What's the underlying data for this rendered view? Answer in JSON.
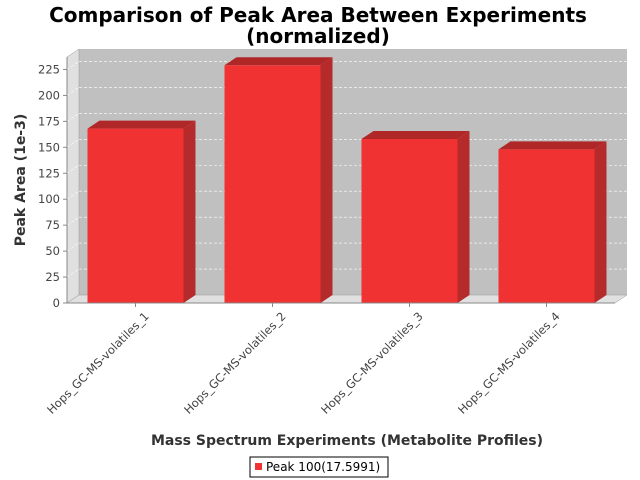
{
  "chart_data": {
    "type": "bar",
    "title_line1": "Comparison of Peak Area Between Experiments",
    "title_line2": "(normalized)",
    "xlabel": "Mass Spectrum Experiments (Metabolite Profiles)",
    "ylabel": "Peak Area (1e-3)",
    "categories": [
      "Hops_GC-MS-volatiles_1",
      "Hops_GC-MS-volatiles_2",
      "Hops_GC-MS-volatiles_3",
      "Hops_GC-MS-volatiles_4"
    ],
    "series": [
      {
        "name": "Peak 100(17.5991)",
        "values": [
          168,
          229,
          158,
          148
        ]
      }
    ],
    "ylim": [
      0,
      237
    ],
    "yticks": [
      0,
      25,
      50,
      75,
      100,
      125,
      150,
      175,
      200,
      225
    ],
    "grid": true,
    "legend": "bottom-center",
    "colors": {
      "bar": "#f03232",
      "bar_top": "#b02727",
      "bar_side": "#b52a2a",
      "plot_bg": "#c0c0c0",
      "wall": "#e0e0e0"
    }
  }
}
